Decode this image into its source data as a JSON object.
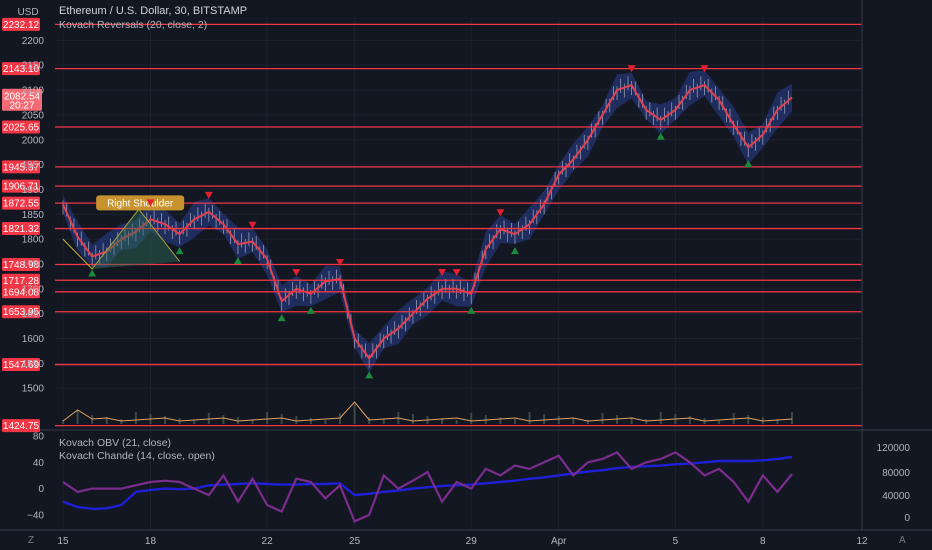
{
  "header": {
    "currency": "USD",
    "title": "Ethereum / U.S. Dollar, 30, BITSTAMP",
    "indicator": "Kovach Reversals (20, close, 2)",
    "sub1": "Kovach OBV (21, close)",
    "sub2": "Kovach Chande (14, close, open)"
  },
  "annotation": {
    "label": "Right Shoulder"
  },
  "current_price": {
    "value": "2082.54",
    "countdown": "20:27"
  },
  "corners": {
    "left": "Z",
    "right": "A"
  },
  "colors": {
    "background": "#131722",
    "level_line": "#f23645",
    "price_line": "#e04050",
    "band": "#2a3e8f",
    "up_marker": "#1b8a3a",
    "down_marker": "#e21f2f",
    "obv": "#1f1fd6",
    "chande": "#7b2d8e",
    "volume_line": "#e0a060"
  },
  "chart_data": [
    {
      "type": "line",
      "title": "Ethereum / U.S. Dollar, 30, BITSTAMP",
      "x_ticks": [
        "15",
        "18",
        "22",
        "25",
        "29",
        "Apr",
        "5",
        "8",
        "12"
      ],
      "x": [
        "15",
        "15.5",
        "16",
        "16.5",
        "17",
        "17.5",
        "18",
        "18.5",
        "19",
        "19.5",
        "20",
        "20.5",
        "21",
        "21.5",
        "22",
        "22.5",
        "23",
        "23.5",
        "24",
        "24.5",
        "25",
        "25.5",
        "26",
        "26.5",
        "27",
        "27.5",
        "28",
        "28.5",
        "29",
        "29.5",
        "30",
        "30.5",
        "31",
        "31.5",
        "Apr",
        "1.5",
        "2",
        "2.5",
        "3",
        "3.5",
        "4",
        "4.5",
        "5",
        "5.5",
        "6",
        "6.5",
        "7",
        "7.5",
        "8",
        "8.5",
        "9"
      ],
      "close": [
        1870,
        1805,
        1765,
        1775,
        1800,
        1815,
        1840,
        1830,
        1810,
        1840,
        1855,
        1830,
        1790,
        1795,
        1760,
        1675,
        1700,
        1690,
        1715,
        1720,
        1600,
        1560,
        1600,
        1620,
        1650,
        1680,
        1700,
        1700,
        1690,
        1780,
        1820,
        1810,
        1830,
        1870,
        1930,
        1960,
        2000,
        2050,
        2100,
        2110,
        2060,
        2040,
        2060,
        2100,
        2110,
        2080,
        2030,
        1985,
        2010,
        2060,
        2085
      ],
      "y_ticks": [
        1500,
        1550,
        1600,
        1650,
        1700,
        1750,
        1800,
        1850,
        1900,
        1950,
        2000,
        2050,
        2100,
        2150,
        2200
      ],
      "ylim": [
        1420,
        2245
      ],
      "levels": [
        2232.12,
        2143.1,
        2025.65,
        1945.37,
        1906.71,
        1872.55,
        1821.32,
        1748.98,
        1717.28,
        1694.08,
        1653.95,
        1547.69,
        1424.75
      ],
      "current_value": 2082.54
    },
    {
      "type": "line",
      "series": [
        {
          "name": "Kovach OBV (21, close)",
          "values": [
            -20,
            -28,
            -31,
            -30,
            -25,
            -5,
            -2,
            0,
            -1,
            0,
            5,
            6,
            7,
            8,
            7,
            6,
            6,
            7,
            7,
            8,
            -10,
            -8,
            -5,
            -3,
            0,
            2,
            4,
            5,
            6,
            8,
            10,
            12,
            15,
            17,
            20,
            23,
            26,
            28,
            31,
            33,
            34,
            35,
            37,
            38,
            40,
            42,
            42,
            42,
            43,
            45,
            48
          ]
        },
        {
          "name": "Kovach Chande (14, close, open)",
          "values": [
            10,
            -5,
            0,
            0,
            0,
            5,
            10,
            12,
            10,
            0,
            -10,
            20,
            -20,
            15,
            -25,
            -35,
            15,
            10,
            -15,
            5,
            -50,
            -40,
            20,
            0,
            12,
            25,
            -20,
            10,
            0,
            30,
            20,
            35,
            30,
            40,
            50,
            20,
            40,
            45,
            55,
            30,
            40,
            45,
            55,
            40,
            20,
            30,
            10,
            -20,
            20,
            -5,
            22
          ]
        }
      ],
      "left_ticks": [
        80,
        40,
        0,
        -40
      ],
      "right_ticks": [
        "120000",
        "80000",
        "40000",
        "0"
      ],
      "ylim": [
        -60,
        80
      ]
    }
  ]
}
